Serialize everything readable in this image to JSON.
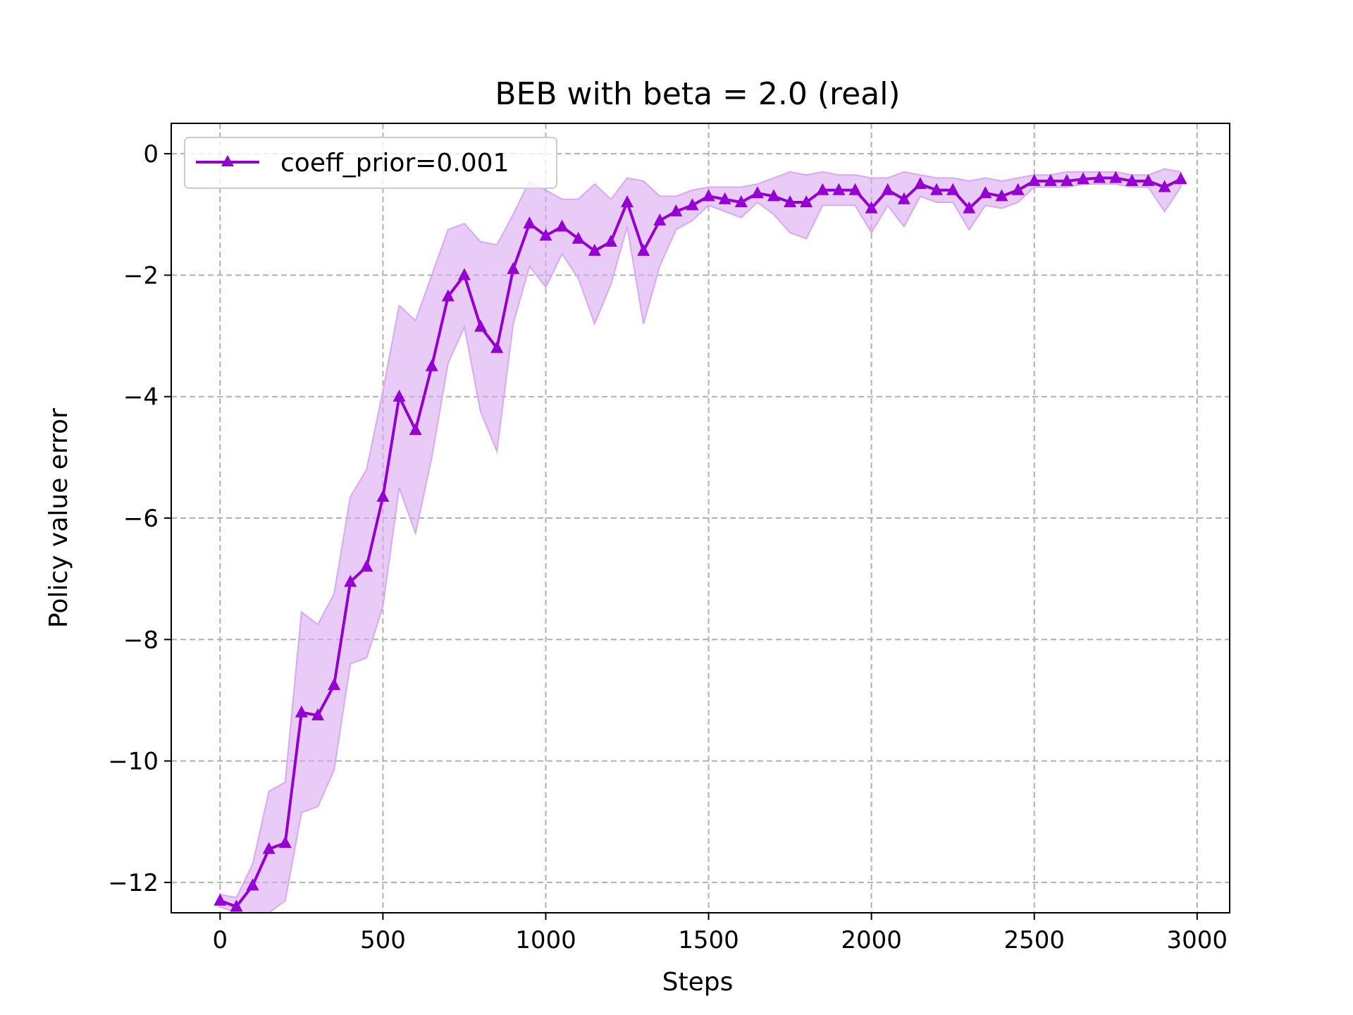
{
  "chart_data": {
    "type": "line",
    "title": "BEB with beta = 2.0 (real)",
    "xlabel": "Steps",
    "ylabel": "Policy value error",
    "xlim": [
      -150,
      3100
    ],
    "ylim": [
      -12.5,
      0.5
    ],
    "xticks": [
      0,
      500,
      1000,
      1500,
      2000,
      2500,
      3000
    ],
    "xtick_labels": [
      "0",
      "500",
      "1000",
      "1500",
      "2000",
      "2500",
      "3000"
    ],
    "yticks": [
      0,
      -2,
      -4,
      -6,
      -8,
      -10,
      -12
    ],
    "ytick_labels": [
      "0",
      "−2",
      "−4",
      "−6",
      "−8",
      "−10",
      "−12"
    ],
    "grid": true,
    "legend_position": "top-left",
    "colors": {
      "line": "#9400d3",
      "band": "#d9a8f0"
    },
    "series": [
      {
        "name": "coeff_prior=0.001",
        "marker": "triangle-up",
        "x": [
          0,
          50,
          100,
          150,
          200,
          250,
          300,
          350,
          400,
          450,
          500,
          550,
          600,
          650,
          700,
          750,
          800,
          850,
          900,
          950,
          1000,
          1050,
          1100,
          1150,
          1200,
          1250,
          1300,
          1350,
          1400,
          1450,
          1500,
          1550,
          1600,
          1650,
          1700,
          1750,
          1800,
          1850,
          1900,
          1950,
          2000,
          2050,
          2100,
          2150,
          2200,
          2250,
          2300,
          2350,
          2400,
          2450,
          2500,
          2550,
          2600,
          2650,
          2700,
          2750,
          2800,
          2850,
          2900,
          2950
        ],
        "y": [
          -12.3,
          -12.4,
          -12.05,
          -11.45,
          -11.35,
          -9.2,
          -9.25,
          -8.75,
          -7.05,
          -6.8,
          -5.65,
          -4.0,
          -4.55,
          -3.5,
          -2.35,
          -2.0,
          -2.85,
          -3.2,
          -1.9,
          -1.15,
          -1.35,
          -1.2,
          -1.4,
          -1.6,
          -1.45,
          -0.8,
          -1.6,
          -1.1,
          -0.95,
          -0.85,
          -0.7,
          -0.75,
          -0.8,
          -0.65,
          -0.7,
          -0.8,
          -0.8,
          -0.6,
          -0.6,
          -0.6,
          -0.9,
          -0.6,
          -0.75,
          -0.5,
          -0.6,
          -0.6,
          -0.9,
          -0.65,
          -0.7,
          -0.6,
          -0.45,
          -0.45,
          -0.45,
          -0.42,
          -0.4,
          -0.4,
          -0.45,
          -0.45,
          -0.55,
          -0.42
        ],
        "y_upper": [
          -12.2,
          -12.25,
          -11.7,
          -10.5,
          -10.35,
          -7.55,
          -7.75,
          -7.25,
          -5.65,
          -5.2,
          -3.9,
          -2.5,
          -2.75,
          -2.0,
          -1.25,
          -1.15,
          -1.45,
          -1.5,
          -1.0,
          -0.45,
          -0.6,
          -0.75,
          -0.75,
          -0.5,
          -0.75,
          -0.4,
          -0.45,
          -0.7,
          -0.7,
          -0.6,
          -0.55,
          -0.55,
          -0.55,
          -0.5,
          -0.4,
          -0.3,
          -0.35,
          -0.3,
          -0.35,
          -0.35,
          -0.4,
          -0.4,
          -0.3,
          -0.35,
          -0.4,
          -0.4,
          -0.45,
          -0.4,
          -0.45,
          -0.4,
          -0.35,
          -0.35,
          -0.3,
          -0.3,
          -0.3,
          -0.3,
          -0.35,
          -0.35,
          -0.25,
          -0.3
        ],
        "y_lower": [
          -12.4,
          -12.5,
          -12.5,
          -12.5,
          -12.3,
          -10.85,
          -10.75,
          -10.15,
          -8.4,
          -8.3,
          -7.45,
          -5.5,
          -6.25,
          -5.0,
          -3.45,
          -2.85,
          -4.25,
          -4.9,
          -2.8,
          -1.85,
          -2.2,
          -1.65,
          -2.05,
          -2.8,
          -2.15,
          -1.2,
          -2.8,
          -1.85,
          -1.25,
          -1.1,
          -0.85,
          -0.95,
          -1.05,
          -0.8,
          -1.0,
          -1.3,
          -1.4,
          -0.85,
          -0.85,
          -0.85,
          -1.3,
          -0.85,
          -1.2,
          -0.7,
          -0.8,
          -0.8,
          -1.25,
          -0.85,
          -0.9,
          -0.8,
          -0.55,
          -0.55,
          -0.55,
          -0.5,
          -0.5,
          -0.5,
          -0.55,
          -0.55,
          -0.95,
          -0.55
        ]
      }
    ]
  }
}
